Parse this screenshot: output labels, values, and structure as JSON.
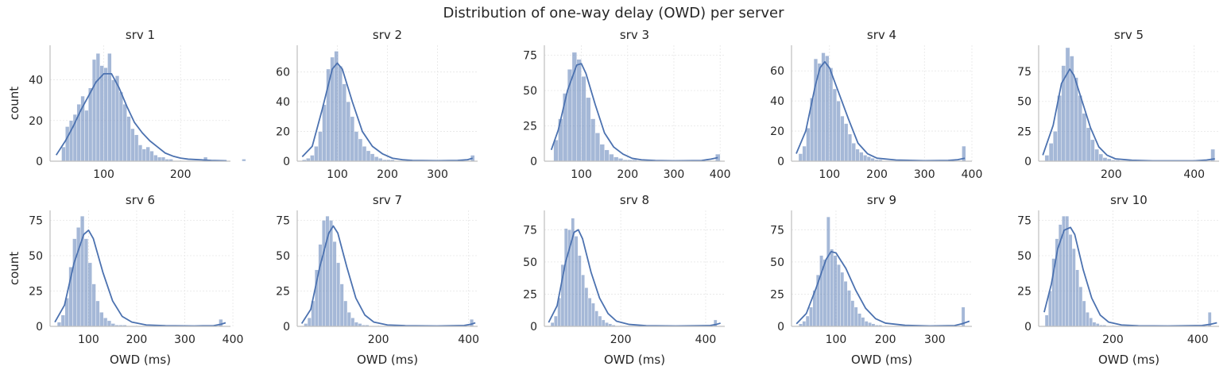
{
  "figure": {
    "title": "Distribution of one-way delay (OWD) per server",
    "bar_color": "#4c72b0",
    "bar_opacity": 0.5,
    "kde_color": "#4c72b0",
    "grid_color": "#e6e6e6",
    "spine_color": "#bfbfbf"
  },
  "chart_data": [
    {
      "type": "bar",
      "title": "srv 1",
      "ylabel": "count",
      "xlabel": "",
      "xlim": [
        30,
        265
      ],
      "ylim": [
        0,
        57
      ],
      "xticks": [
        100,
        200
      ],
      "yticks": [
        0,
        20,
        40
      ],
      "bins": {
        "start": 40,
        "width": 5,
        "counts": [
          0,
          7,
          17,
          20,
          23,
          28,
          32,
          25,
          36,
          50,
          53,
          47,
          46,
          53,
          40,
          42,
          34,
          28,
          22,
          16,
          13,
          8,
          6,
          7,
          5,
          3,
          2,
          2,
          1,
          1,
          0,
          0,
          0,
          0,
          0,
          0,
          0,
          0,
          2,
          0,
          0,
          0,
          0,
          0,
          0,
          0,
          0,
          0,
          1
        ]
      },
      "kde": {
        "x": [
          38,
          50,
          60,
          70,
          80,
          90,
          100,
          110,
          120,
          130,
          140,
          150,
          160,
          170,
          180,
          190,
          200,
          210,
          220,
          230,
          240,
          250,
          260
        ],
        "y": [
          3,
          10,
          17,
          25,
          32,
          39,
          43,
          43,
          36,
          27,
          19,
          14,
          10,
          7,
          4,
          2.5,
          1.5,
          1,
          0.8,
          0.6,
          0.4,
          0.3,
          0.2
        ]
      }
    },
    {
      "type": "bar",
      "title": "srv 2",
      "ylabel": "",
      "xlabel": "",
      "xlim": [
        20,
        380
      ],
      "ylim": [
        0,
        78
      ],
      "xticks": [
        100,
        200,
        300
      ],
      "yticks": [
        0,
        20,
        40,
        60
      ],
      "bins": {
        "start": 30,
        "width": 8,
        "counts": [
          1,
          2,
          4,
          10,
          20,
          38,
          62,
          70,
          74,
          64,
          52,
          40,
          30,
          20,
          15,
          10,
          7,
          5,
          3,
          2,
          1,
          1,
          1,
          0,
          0,
          0,
          0,
          0,
          0,
          0,
          0,
          0,
          0,
          0,
          0,
          0,
          0,
          0,
          0,
          0,
          0,
          0,
          4
        ]
      },
      "kde": {
        "x": [
          30,
          50,
          70,
          90,
          100,
          110,
          130,
          150,
          170,
          190,
          210,
          230,
          250,
          300,
          340,
          360,
          370
        ],
        "y": [
          3,
          10,
          35,
          62,
          66,
          62,
          40,
          20,
          10,
          5,
          2,
          1,
          0.5,
          0.3,
          0.5,
          1,
          2
        ]
      }
    },
    {
      "type": "bar",
      "title": "srv 3",
      "ylabel": "",
      "xlabel": "",
      "xlim": [
        20,
        410
      ],
      "ylim": [
        0,
        82
      ],
      "xticks": [
        100,
        200,
        300,
        400
      ],
      "yticks": [
        0,
        25,
        50,
        75
      ],
      "bins": {
        "start": 40,
        "width": 10,
        "counts": [
          15,
          30,
          48,
          65,
          77,
          72,
          60,
          45,
          30,
          20,
          12,
          8,
          5,
          3,
          2,
          1,
          1,
          1,
          0,
          0,
          0,
          0,
          0,
          0,
          0,
          0,
          0,
          0,
          0,
          0,
          0,
          0,
          0,
          0,
          0,
          5
        ]
      },
      "kde": {
        "x": [
          35,
          50,
          70,
          90,
          100,
          110,
          130,
          150,
          170,
          190,
          210,
          230,
          260,
          300,
          360,
          380,
          395
        ],
        "y": [
          8,
          22,
          50,
          68,
          69,
          62,
          40,
          20,
          10,
          5,
          2,
          1,
          0.5,
          0.3,
          0.5,
          1.5,
          2.5
        ]
      }
    },
    {
      "type": "bar",
      "title": "srv 4",
      "ylabel": "",
      "xlabel": "",
      "xlim": [
        20,
        400
      ],
      "ylim": [
        0,
        77
      ],
      "xticks": [
        100,
        200,
        300,
        400
      ],
      "yticks": [
        0,
        20,
        40,
        60
      ],
      "bins": {
        "start": 35,
        "width": 8,
        "counts": [
          5,
          10,
          22,
          42,
          68,
          65,
          72,
          70,
          62,
          48,
          40,
          30,
          25,
          18,
          12,
          8,
          6,
          4,
          3,
          2,
          1,
          1,
          0,
          0,
          0,
          0,
          0,
          0,
          0,
          0,
          0,
          0,
          0,
          0,
          0,
          0,
          0,
          0,
          0,
          0,
          0,
          0,
          0,
          10
        ]
      },
      "kde": {
        "x": [
          30,
          50,
          70,
          80,
          90,
          100,
          120,
          140,
          160,
          180,
          200,
          240,
          300,
          350,
          370,
          385
        ],
        "y": [
          5,
          20,
          50,
          62,
          66,
          62,
          45,
          28,
          12,
          5,
          2,
          0.8,
          0.3,
          0.5,
          1,
          2
        ]
      }
    },
    {
      "type": "bar",
      "title": "srv 5",
      "ylabel": "",
      "xlabel": "",
      "xlim": [
        25,
        460
      ],
      "ylim": [
        0,
        97
      ],
      "xticks": [
        200,
        400
      ],
      "yticks": [
        0,
        25,
        50,
        75
      ],
      "bins": {
        "start": 40,
        "width": 10,
        "counts": [
          5,
          15,
          25,
          55,
          80,
          95,
          88,
          70,
          55,
          40,
          28,
          18,
          10,
          6,
          3,
          2,
          1,
          1,
          0,
          0,
          0,
          0,
          0,
          0,
          0,
          0,
          0,
          0,
          0,
          0,
          0,
          0,
          0,
          0,
          0,
          0,
          0,
          0,
          0,
          0,
          10
        ]
      },
      "kde": {
        "x": [
          35,
          60,
          80,
          100,
          110,
          130,
          150,
          170,
          190,
          210,
          250,
          300,
          400,
          430,
          450
        ],
        "y": [
          5,
          30,
          65,
          77,
          72,
          50,
          28,
          12,
          5,
          2,
          0.8,
          0.3,
          0.3,
          1,
          2
        ]
      }
    },
    {
      "type": "bar",
      "title": "srv 6",
      "ylabel": "count",
      "xlabel": "OWD (ms)",
      "xlim": [
        20,
        395
      ],
      "ylim": [
        0,
        82
      ],
      "xticks": [
        100,
        200,
        300,
        400
      ],
      "yticks": [
        0,
        25,
        50,
        75
      ],
      "bins": {
        "start": 35,
        "width": 8,
        "counts": [
          3,
          8,
          20,
          42,
          62,
          70,
          78,
          62,
          45,
          30,
          18,
          10,
          6,
          4,
          2,
          1,
          1,
          1,
          0,
          0,
          0,
          0,
          0,
          0,
          0,
          0,
          0,
          0,
          0,
          0,
          0,
          0,
          0,
          0,
          0,
          0,
          0,
          0,
          0,
          0,
          0,
          0,
          5
        ]
      },
      "kde": {
        "x": [
          30,
          50,
          70,
          90,
          100,
          110,
          130,
          150,
          170,
          190,
          220,
          260,
          320,
          360,
          375,
          385
        ],
        "y": [
          3,
          15,
          45,
          65,
          68,
          62,
          38,
          18,
          7,
          3,
          1,
          0.5,
          0.3,
          0.5,
          1.5,
          2.5
        ]
      }
    },
    {
      "type": "bar",
      "title": "srv 7",
      "ylabel": "",
      "xlabel": "OWD (ms)",
      "xlim": [
        20,
        420
      ],
      "ylim": [
        0,
        82
      ],
      "xticks": [
        200,
        400
      ],
      "yticks": [
        0,
        25,
        50,
        75
      ],
      "bins": {
        "start": 35,
        "width": 8,
        "counts": [
          2,
          6,
          18,
          40,
          58,
          75,
          78,
          75,
          60,
          45,
          30,
          18,
          10,
          6,
          3,
          2,
          1,
          1,
          0,
          0,
          0,
          0,
          0,
          0,
          0,
          0,
          0,
          0,
          0,
          0,
          0,
          0,
          0,
          0,
          0,
          0,
          0,
          0,
          0,
          0,
          0,
          0,
          0,
          0,
          0,
          0,
          5
        ]
      },
      "kde": {
        "x": [
          30,
          50,
          70,
          90,
          100,
          110,
          130,
          150,
          170,
          190,
          220,
          260,
          330,
          390,
          405,
          415
        ],
        "y": [
          2,
          12,
          42,
          66,
          71,
          66,
          42,
          20,
          8,
          3,
          1,
          0.5,
          0.3,
          0.6,
          1.5,
          2.5
        ]
      }
    },
    {
      "type": "bar",
      "title": "srv 8",
      "ylabel": "",
      "xlabel": "OWD (ms)",
      "xlim": [
        20,
        445
      ],
      "ylim": [
        0,
        90
      ],
      "xticks": [
        200,
        400
      ],
      "yticks": [
        0,
        25,
        50,
        75
      ],
      "bins": {
        "start": 35,
        "width": 8,
        "counts": [
          3,
          8,
          22,
          48,
          76,
          75,
          84,
          70,
          55,
          40,
          30,
          22,
          18,
          12,
          8,
          5,
          3,
          2,
          1,
          0,
          0,
          0,
          0,
          0,
          0,
          0,
          0,
          0,
          0,
          0,
          0,
          0,
          0,
          0,
          0,
          0,
          0,
          0,
          0,
          0,
          0,
          0,
          0,
          0,
          0,
          0,
          0,
          0,
          5
        ]
      },
      "kde": {
        "x": [
          30,
          50,
          70,
          90,
          100,
          110,
          130,
          150,
          170,
          190,
          220,
          260,
          330,
          410,
          425,
          435
        ],
        "y": [
          3,
          16,
          50,
          73,
          75,
          68,
          42,
          22,
          10,
          4,
          1.5,
          0.5,
          0.3,
          0.6,
          1.5,
          2.5
        ]
      }
    },
    {
      "type": "bar",
      "title": "srv 9",
      "ylabel": "",
      "xlabel": "OWD (ms)",
      "xlim": [
        10,
        375
      ],
      "ylim": [
        0,
        90
      ],
      "xticks": [
        100,
        200,
        300
      ],
      "yticks": [
        0,
        25,
        50,
        75
      ],
      "bins": {
        "start": 25,
        "width": 7,
        "counts": [
          2,
          4,
          8,
          15,
          28,
          40,
          55,
          52,
          85,
          60,
          55,
          48,
          42,
          35,
          28,
          20,
          15,
          10,
          7,
          4,
          3,
          2,
          1,
          1,
          0,
          0,
          0,
          0,
          0,
          0,
          0,
          0,
          0,
          0,
          0,
          0,
          0,
          0,
          0,
          0,
          0,
          0,
          0,
          0,
          0,
          0,
          0,
          15
        ]
      },
      "kde": {
        "x": [
          20,
          40,
          60,
          80,
          90,
          100,
          120,
          140,
          160,
          180,
          200,
          240,
          290,
          340,
          355,
          370
        ],
        "y": [
          2,
          10,
          30,
          52,
          58,
          57,
          45,
          28,
          14,
          6,
          2.5,
          0.8,
          0.3,
          0.6,
          2,
          4
        ]
      }
    },
    {
      "type": "bar",
      "title": "srv 10",
      "ylabel": "",
      "xlabel": "OWD (ms)",
      "xlim": [
        25,
        450
      ],
      "ylim": [
        0,
        82
      ],
      "xticks": [
        200,
        400
      ],
      "yticks": [
        0,
        25,
        50,
        75
      ],
      "bins": {
        "start": 40,
        "width": 8,
        "counts": [
          8,
          25,
          48,
          62,
          72,
          78,
          78,
          65,
          55,
          40,
          28,
          18,
          10,
          6,
          3,
          2,
          1,
          1,
          0,
          0,
          0,
          0,
          0,
          0,
          0,
          0,
          0,
          0,
          0,
          0,
          0,
          0,
          0,
          0,
          0,
          0,
          0,
          0,
          0,
          0,
          0,
          0,
          0,
          0,
          0,
          0,
          0,
          0,
          10
        ]
      },
      "kde": {
        "x": [
          38,
          55,
          70,
          85,
          100,
          110,
          130,
          150,
          170,
          190,
          220,
          260,
          330,
          410,
          430,
          445
        ],
        "y": [
          10,
          30,
          55,
          68,
          70,
          65,
          40,
          20,
          8,
          3,
          1,
          0.4,
          0.3,
          0.6,
          1.5,
          2.5
        ]
      }
    }
  ]
}
